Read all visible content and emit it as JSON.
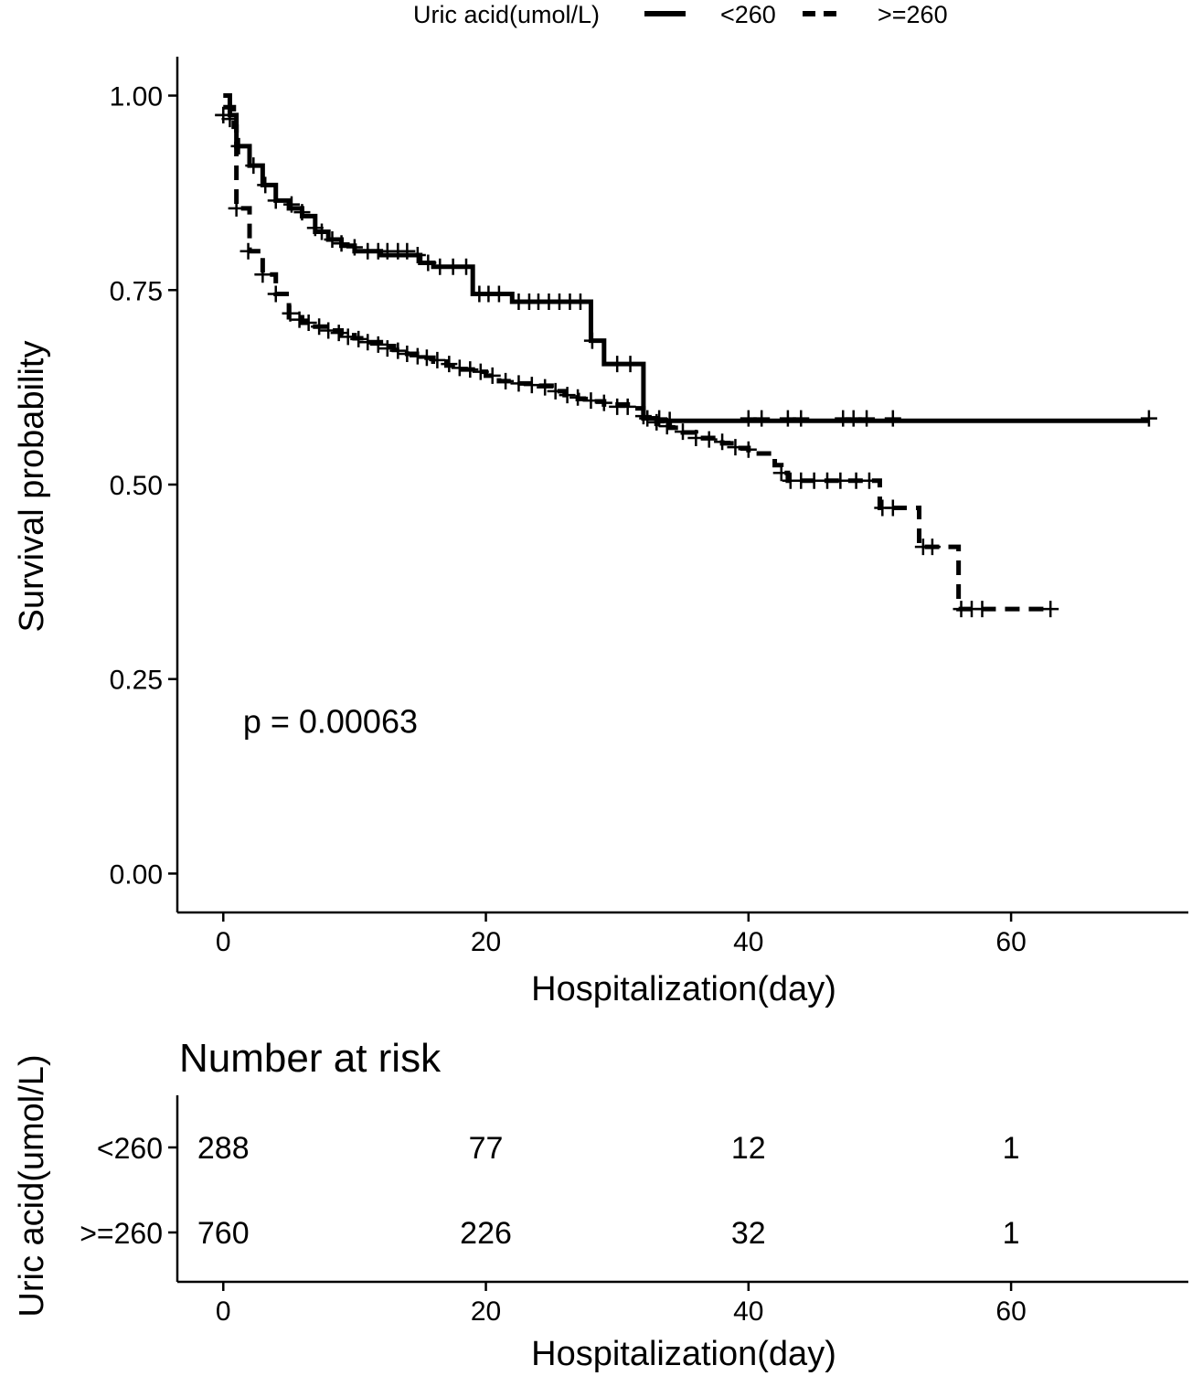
{
  "legend": {
    "title": "Uric acid(umol/L)",
    "items": [
      {
        "label": "<260",
        "style": "solid"
      },
      {
        "label": ">=260",
        "style": "dashed"
      }
    ]
  },
  "colors": {
    "line": "#000000",
    "background": "#ffffff"
  },
  "chart_data": [
    {
      "type": "line",
      "subtype": "kaplan-meier",
      "xlabel": "Hospitalization(day)",
      "ylabel": "Survival probability",
      "xlim": [
        -3.5,
        73.5
      ],
      "ylim": [
        -0.05,
        1.05
      ],
      "x_ticks": [
        0,
        20,
        40,
        60
      ],
      "x_tick_labels": [
        "0",
        "20",
        "40",
        "60"
      ],
      "y_ticks": [
        0,
        0.25,
        0.5,
        0.75,
        1.0
      ],
      "y_tick_labels": [
        "0.00",
        "0.25",
        "0.50",
        "0.75",
        "1.00"
      ],
      "grid": false,
      "annotation": "p = 0.00063",
      "annotation_position": {
        "x": 1.5,
        "y": 0.195
      },
      "series": [
        {
          "name": "<260",
          "style": "solid",
          "steps": [
            [
              0,
              1.0
            ],
            [
              0.5,
              0.975
            ],
            [
              1,
              0.935
            ],
            [
              2,
              0.91
            ],
            [
              3,
              0.885
            ],
            [
              4,
              0.865
            ],
            [
              5,
              0.855
            ],
            [
              6,
              0.845
            ],
            [
              7,
              0.825
            ],
            [
              8,
              0.815
            ],
            [
              9,
              0.807
            ],
            [
              10,
              0.8
            ],
            [
              12,
              0.795
            ],
            [
              15,
              0.785
            ],
            [
              16,
              0.78
            ],
            [
              19,
              0.745
            ],
            [
              22,
              0.735
            ],
            [
              28,
              0.685
            ],
            [
              29,
              0.655
            ],
            [
              32,
              0.585
            ],
            [
              33,
              0.582
            ],
            [
              70.5,
              0.582
            ]
          ],
          "censored": [
            [
              0,
              0.975
            ],
            [
              0.5,
              0.97
            ],
            [
              1.2,
              0.935
            ],
            [
              2.3,
              0.91
            ],
            [
              3.2,
              0.885
            ],
            [
              4,
              0.865
            ],
            [
              5.2,
              0.86
            ],
            [
              6,
              0.85
            ],
            [
              7,
              0.83
            ],
            [
              7.5,
              0.825
            ],
            [
              8.3,
              0.815
            ],
            [
              9,
              0.81
            ],
            [
              10,
              0.805
            ],
            [
              11,
              0.8
            ],
            [
              11.8,
              0.8
            ],
            [
              12.5,
              0.8
            ],
            [
              13.3,
              0.8
            ],
            [
              14,
              0.8
            ],
            [
              14.8,
              0.795
            ],
            [
              15.6,
              0.785
            ],
            [
              16.5,
              0.78
            ],
            [
              17.5,
              0.78
            ],
            [
              18.5,
              0.78
            ],
            [
              19.5,
              0.745
            ],
            [
              20.2,
              0.745
            ],
            [
              21,
              0.745
            ],
            [
              22.5,
              0.735
            ],
            [
              23.3,
              0.735
            ],
            [
              24,
              0.735
            ],
            [
              24.8,
              0.735
            ],
            [
              25.6,
              0.735
            ],
            [
              26.4,
              0.735
            ],
            [
              27.2,
              0.735
            ],
            [
              28.1,
              0.685
            ],
            [
              30,
              0.655
            ],
            [
              31,
              0.655
            ],
            [
              32.3,
              0.585
            ],
            [
              33.2,
              0.585
            ],
            [
              34,
              0.583
            ],
            [
              40,
              0.585
            ],
            [
              41,
              0.585
            ],
            [
              43,
              0.585
            ],
            [
              44,
              0.585
            ],
            [
              47.2,
              0.585
            ],
            [
              48,
              0.585
            ],
            [
              49,
              0.585
            ],
            [
              51,
              0.585
            ],
            [
              70.5,
              0.585
            ]
          ]
        },
        {
          "name": ">=260",
          "style": "dashed",
          "steps": [
            [
              0,
              0.985
            ],
            [
              0.8,
              0.96
            ],
            [
              1,
              0.855
            ],
            [
              2,
              0.8
            ],
            [
              3,
              0.77
            ],
            [
              4,
              0.745
            ],
            [
              5,
              0.715
            ],
            [
              6,
              0.708
            ],
            [
              7,
              0.703
            ],
            [
              8,
              0.698
            ],
            [
              9,
              0.692
            ],
            [
              10,
              0.688
            ],
            [
              11,
              0.683
            ],
            [
              12,
              0.678
            ],
            [
              13,
              0.673
            ],
            [
              14,
              0.668
            ],
            [
              15,
              0.663
            ],
            [
              16,
              0.658
            ],
            [
              17,
              0.653
            ],
            [
              18,
              0.648
            ],
            [
              19,
              0.645
            ],
            [
              20,
              0.64
            ],
            [
              21,
              0.633
            ],
            [
              22,
              0.63
            ],
            [
              24,
              0.627
            ],
            [
              25,
              0.62
            ],
            [
              26,
              0.615
            ],
            [
              27,
              0.61
            ],
            [
              28,
              0.607
            ],
            [
              29,
              0.603
            ],
            [
              31,
              0.598
            ],
            [
              32,
              0.585
            ],
            [
              33,
              0.578
            ],
            [
              34,
              0.573
            ],
            [
              35,
              0.567
            ],
            [
              36,
              0.56
            ],
            [
              38,
              0.553
            ],
            [
              39,
              0.547
            ],
            [
              40,
              0.54
            ],
            [
              42,
              0.525
            ],
            [
              42.5,
              0.515
            ],
            [
              43,
              0.505
            ],
            [
              50,
              0.47
            ],
            [
              53,
              0.42
            ],
            [
              56,
              0.34
            ],
            [
              63,
              0.34
            ]
          ],
          "censored": [
            [
              0,
              0.975
            ],
            [
              1,
              0.855
            ],
            [
              1.9,
              0.8
            ],
            [
              3,
              0.77
            ],
            [
              4,
              0.745
            ],
            [
              5.1,
              0.72
            ],
            [
              5.8,
              0.712
            ],
            [
              6.5,
              0.708
            ],
            [
              7.3,
              0.703
            ],
            [
              8,
              0.698
            ],
            [
              8.8,
              0.695
            ],
            [
              9.5,
              0.69
            ],
            [
              10.3,
              0.687
            ],
            [
              11,
              0.683
            ],
            [
              11.8,
              0.68
            ],
            [
              12.5,
              0.675
            ],
            [
              13.3,
              0.672
            ],
            [
              14,
              0.668
            ],
            [
              14.8,
              0.665
            ],
            [
              15.5,
              0.663
            ],
            [
              16.3,
              0.66
            ],
            [
              17.2,
              0.655
            ],
            [
              18,
              0.65
            ],
            [
              18.8,
              0.648
            ],
            [
              19.6,
              0.645
            ],
            [
              20.5,
              0.64
            ],
            [
              21.5,
              0.633
            ],
            [
              22.5,
              0.63
            ],
            [
              23.5,
              0.628
            ],
            [
              24.5,
              0.625
            ],
            [
              25.3,
              0.62
            ],
            [
              26.2,
              0.615
            ],
            [
              27,
              0.612
            ],
            [
              28,
              0.608
            ],
            [
              29,
              0.605
            ],
            [
              30,
              0.6
            ],
            [
              30.8,
              0.6
            ],
            [
              32,
              0.588
            ],
            [
              33,
              0.58
            ],
            [
              33.8,
              0.575
            ],
            [
              35,
              0.568
            ],
            [
              36,
              0.56
            ],
            [
              37,
              0.558
            ],
            [
              38,
              0.555
            ],
            [
              39,
              0.548
            ],
            [
              40,
              0.545
            ],
            [
              42.5,
              0.515
            ],
            [
              43.2,
              0.505
            ],
            [
              44,
              0.505
            ],
            [
              45,
              0.505
            ],
            [
              46,
              0.505
            ],
            [
              47,
              0.505
            ],
            [
              48.2,
              0.505
            ],
            [
              49.2,
              0.505
            ],
            [
              50.2,
              0.47
            ],
            [
              51,
              0.47
            ],
            [
              53.3,
              0.42
            ],
            [
              54,
              0.42
            ],
            [
              56.2,
              0.34
            ],
            [
              57,
              0.34
            ],
            [
              57.8,
              0.34
            ],
            [
              63,
              0.34
            ]
          ]
        }
      ]
    },
    {
      "type": "table",
      "title": "Number at risk",
      "ylabel": "Uric acid(umol/L)",
      "xlabel": "Hospitalization(day)",
      "x_ticks": [
        0,
        20,
        40,
        60
      ],
      "x_tick_labels": [
        "0",
        "20",
        "40",
        "60"
      ],
      "rows": [
        {
          "label": "<260",
          "values": [
            "288",
            "77",
            "12",
            "1"
          ]
        },
        {
          "label": ">=260",
          "values": [
            "760",
            "226",
            "32",
            "1"
          ]
        }
      ]
    }
  ]
}
